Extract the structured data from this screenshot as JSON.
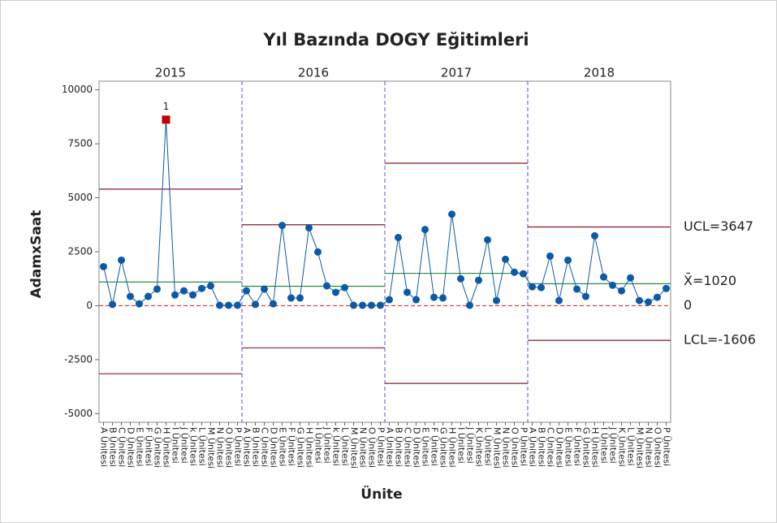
{
  "chart_data": {
    "type": "control",
    "title": "Yıl Bazında DOGY Eğitimleri",
    "xlabel": "Ünite",
    "ylabel": "AdamxSaat",
    "ylim": [
      -5400,
      10400
    ],
    "yticks": [
      -5000,
      -2500,
      0,
      2500,
      5000,
      7500,
      10000
    ],
    "color": "#0b5aa8",
    "flag_color": "#c00000",
    "limit_color": "#8b1a2b",
    "mean_color": "#2e8b3e",
    "divider_color": "#5b4fc4",
    "reference_color": "#e03030",
    "reference": {
      "value": 0,
      "label": "0"
    },
    "limit_labels": {
      "ucl": "UCL=3647",
      "mean": "X̄=1020",
      "lcl": "LCL=-1606"
    },
    "stages": [
      {
        "label": "2015",
        "ucl": 5400,
        "mean": 1100,
        "lcl": -3150,
        "categories": [
          "A Ünitesi",
          "B Ünitesi",
          "C Ünitesi",
          "D Ünitesi",
          "E Ünitesi",
          "F Ünitesi",
          "G Ünitesi",
          "H Ünitesi",
          "I Ünitesi",
          "J Ünitesi",
          "k Ünitesi",
          "L Ünitesi",
          "M Ünitesi",
          "N Ünitesi",
          "O Ünitesi",
          "P Ünitesi"
        ],
        "values": [
          1810,
          60,
          2110,
          430,
          90,
          430,
          770,
          8620,
          500,
          690,
          500,
          800,
          920,
          20,
          20,
          20
        ],
        "flags": [
          {
            "point": 7,
            "label": "1"
          }
        ]
      },
      {
        "label": "2016",
        "ucl": 3750,
        "mean": 900,
        "lcl": -1950,
        "categories": [
          "A Ünitesi",
          "B Ünitesi",
          "C Ünitesi",
          "D Ünitesi",
          "E Ünitesi",
          "F Ünitesi",
          "G Ünitesi",
          "H Ünitesi",
          "I Ünitesi",
          "J Ünitesi",
          "k Ünitesi",
          "L Ünitesi",
          "M Ünitesi",
          "N Ünitesi",
          "O Ünitesi",
          "P Ünitesi"
        ],
        "values": [
          690,
          60,
          770,
          90,
          3720,
          360,
          360,
          3610,
          2490,
          920,
          620,
          840,
          20,
          20,
          20,
          20
        ],
        "flags": []
      },
      {
        "label": "2017",
        "ucl": 6600,
        "mean": 1500,
        "lcl": -3600,
        "categories": [
          "A Ünitesi",
          "B Ünitesi",
          "C Ünitesi",
          "D Ünitesi",
          "E Ünitesi",
          "F Ünitesi",
          "G Ünitesi",
          "H Ünitesi",
          "I Ünitesi",
          "J Ünitesi",
          "K Ünitesi",
          "L Ünitesi",
          "M Ünitesi",
          "N Ünitesi",
          "O Ünitesi",
          "P Ünitesi"
        ],
        "values": [
          280,
          3160,
          620,
          280,
          3530,
          390,
          360,
          4240,
          1250,
          20,
          1180,
          3050,
          240,
          2150,
          1550,
          1480
        ],
        "flags": []
      },
      {
        "label": "2018",
        "ucl": 3647,
        "mean": 1020,
        "lcl": -1606,
        "categories": [
          "A Ünitesi",
          "B Ünitesi",
          "C Ünitesi",
          "D Ünitesi",
          "E Ünitesi",
          "F Ünitesi",
          "G Ünitesi",
          "H Ünitesi",
          "I Ünitesi",
          "J Ünitesi",
          "K Ünitesi",
          "L Ünitesi",
          "M Ünitesi",
          "N Ünitesi",
          "O Ünitesi",
          "P Ünitesi"
        ],
        "values": [
          880,
          840,
          2300,
          240,
          2110,
          770,
          430,
          3240,
          1330,
          950,
          690,
          1290,
          240,
          170,
          390,
          800
        ],
        "flags": []
      }
    ]
  }
}
